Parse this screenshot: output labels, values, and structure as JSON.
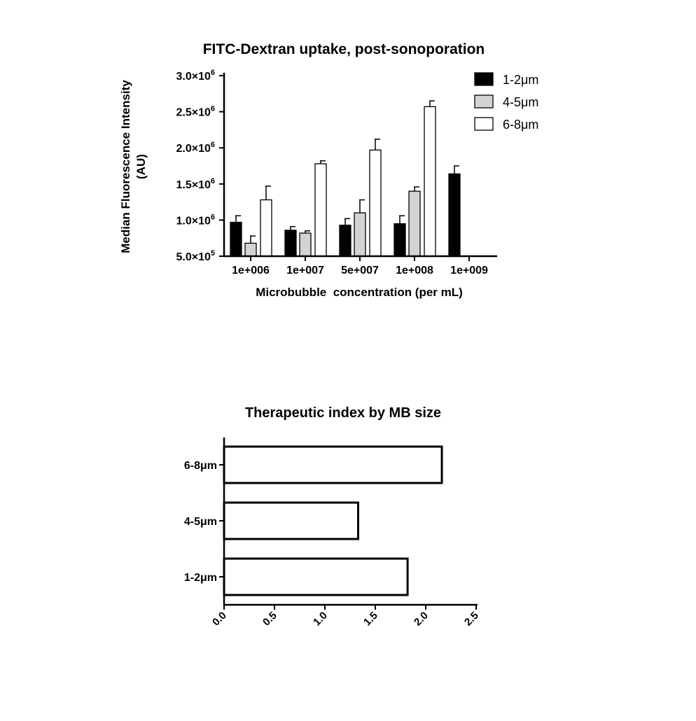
{
  "chart_data": [
    {
      "type": "bar",
      "title": "FITC-Dextran uptake, post-sonoporation",
      "xlabel": "Microbubble  concentration (per mL)",
      "ylabel_lines": [
        "Median Fluorescence Intensity",
        "(AU)"
      ],
      "categories": [
        "1e+006",
        "1e+007",
        "5e+007",
        "1e+008",
        "1e+009"
      ],
      "ylim": [
        500000,
        3000000
      ],
      "yticks": [
        {
          "value": 500000,
          "base": "5.0×10",
          "exp": "5"
        },
        {
          "value": 1000000,
          "base": "1.0×10",
          "exp": "6"
        },
        {
          "value": 1500000,
          "base": "1.5×10",
          "exp": "6"
        },
        {
          "value": 2000000,
          "base": "2.0×10",
          "exp": "6"
        },
        {
          "value": 2500000,
          "base": "2.5×10",
          "exp": "6"
        },
        {
          "value": 3000000,
          "base": "3.0×10",
          "exp": "6"
        }
      ],
      "legend_position": "top-right",
      "series": [
        {
          "name": "1-2μm",
          "color": "#000000",
          "values": [
            970000,
            860000,
            930000,
            950000,
            1640000
          ],
          "errors": [
            90000,
            50000,
            90000,
            110000,
            110000
          ]
        },
        {
          "name": "4-5μm",
          "color": "#d3d3d3",
          "values": [
            680000,
            820000,
            1100000,
            1400000,
            null
          ],
          "errors": [
            100000,
            30000,
            180000,
            60000,
            null
          ]
        },
        {
          "name": "6-8μm",
          "color": "#ffffff",
          "values": [
            1280000,
            1780000,
            1970000,
            2570000,
            null
          ],
          "errors": [
            190000,
            40000,
            150000,
            80000,
            null
          ]
        }
      ],
      "grid": false
    },
    {
      "type": "bar",
      "orientation": "horizontal",
      "title": "Therapeutic index by MB size",
      "categories": [
        "6-8μm",
        "4-5μm",
        "1-2μm"
      ],
      "values": [
        2.16,
        1.33,
        1.82
      ],
      "xlim": [
        0,
        2.5
      ],
      "xticks": [
        "0.0",
        "0.5",
        "1.0",
        "1.5",
        "2.0",
        "2.5"
      ],
      "bar_color": "#ffffff",
      "grid": false
    }
  ]
}
